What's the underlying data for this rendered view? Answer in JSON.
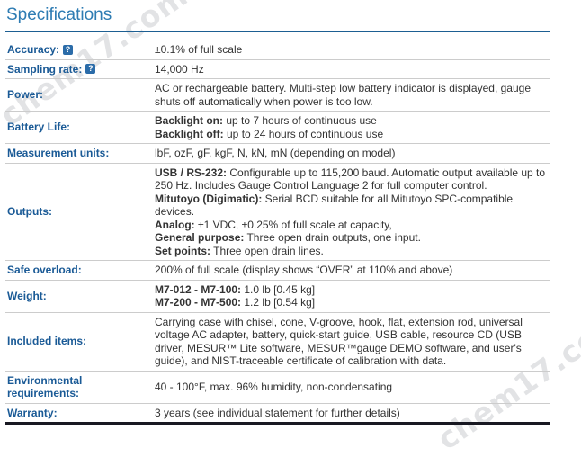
{
  "page": {
    "title": "Specifications"
  },
  "colors": {
    "title_blue": "#2e7cb3",
    "rule_blue": "#1d5f92",
    "label_blue": "#1a5a96",
    "help_icon_blue": "#2b6ca9",
    "divider_gray": "#cccccc",
    "bottom_border_dark": "#181822",
    "value_text": "#333333"
  },
  "watermark": {
    "text": "chem17.com"
  },
  "icons": {
    "help": "?"
  },
  "table": {
    "rows": [
      {
        "label": "Accuracy:",
        "help": true,
        "value": [
          [
            {
              "t": "±0.1% of full scale"
            }
          ]
        ]
      },
      {
        "label": "Sampling rate:",
        "help": true,
        "value": [
          [
            {
              "t": "14,000 Hz"
            }
          ]
        ]
      },
      {
        "label": "Power:",
        "value": [
          [
            {
              "t": "AC or rechargeable battery. Multi-step low battery indicator is displayed, gauge shuts off automatically when power is too low."
            }
          ]
        ]
      },
      {
        "label": "Battery Life:",
        "value": [
          [
            {
              "t": "Backlight on:",
              "b": true
            },
            {
              "t": " up to 7 hours of continuous use"
            }
          ],
          [
            {
              "t": "Backlight off:",
              "b": true
            },
            {
              "t": " up to 24 hours of continuous use"
            }
          ]
        ]
      },
      {
        "label": "Measurement units:",
        "value": [
          [
            {
              "t": "lbF, ozF, gF, kgF, N, kN, mN (depending on model)"
            }
          ]
        ]
      },
      {
        "label": "Outputs:",
        "value": [
          [
            {
              "t": "USB / RS-232:",
              "b": true
            },
            {
              "t": " Configurable up to 115,200 baud. Automatic output available up to 250 Hz. Includes Gauge Control Language 2 for full computer control."
            }
          ],
          [
            {
              "t": "Mitutoyo (Digimatic):",
              "b": true
            },
            {
              "t": " Serial BCD suitable for all Mitutoyo SPC-compatible devices."
            }
          ],
          [
            {
              "t": "Analog:",
              "b": true
            },
            {
              "t": " ±1 VDC, ±0.25% of full scale at capacity,"
            }
          ],
          [
            {
              "t": "General purpose:",
              "b": true
            },
            {
              "t": " Three open drain outputs, one input."
            }
          ],
          [
            {
              "t": "Set points:",
              "b": true
            },
            {
              "t": " Three open drain lines."
            }
          ]
        ]
      },
      {
        "label": "Safe overload:",
        "value": [
          [
            {
              "t": "200% of full scale (display shows “OVER” at 110% and above)"
            }
          ]
        ]
      },
      {
        "label": "Weight:",
        "value": [
          [
            {
              "t": "M7-012 - M7-100:",
              "b": true
            },
            {
              "t": " 1.0 lb [0.45 kg]"
            }
          ],
          [
            {
              "t": "M7-200 - M7-500:",
              "b": true
            },
            {
              "t": " 1.2 lb [0.54 kg]"
            }
          ]
        ]
      },
      {
        "label": "Included items:",
        "value": [
          [
            {
              "t": "Carrying case with chisel, cone, V-groove, hook, flat, extension rod, universal voltage AC adapter, battery, quick-start guide, USB cable, resource CD (USB driver, MESUR™ Lite software, MESUR™gauge DEMO software, and user's guide), and NIST-traceable certificate of calibration with data."
            }
          ]
        ]
      },
      {
        "label": "Environmental requirements:",
        "value": [
          [
            {
              "t": "40 - 100°F, max. 96% humidity, non-condensating"
            }
          ]
        ]
      },
      {
        "label": "Warranty:",
        "value": [
          [
            {
              "t": "3 years (see individual statement for further details)"
            }
          ]
        ]
      }
    ]
  }
}
